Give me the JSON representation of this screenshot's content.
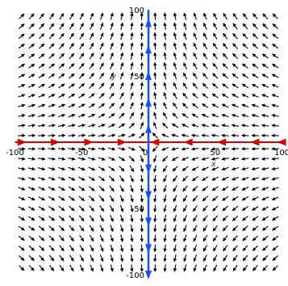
{
  "chart_data": {
    "type": "vector-field",
    "xlabel": "x",
    "ylabel": "y",
    "xlim": [
      -100,
      100
    ],
    "ylim": [
      -100,
      100
    ],
    "x_ticks": [
      -100,
      -50,
      0,
      50,
      100
    ],
    "y_ticks": [
      -100,
      -50,
      50,
      100
    ],
    "x_tick_labels": [
      "-100",
      "-50",
      "0",
      "50",
      "100"
    ],
    "y_tick_labels": [
      "-100",
      "-50",
      "50",
      "100"
    ],
    "grid": false,
    "field": {
      "dx_formula": "-x",
      "dy_formula": "y",
      "x_samples": [
        -95,
        -87.5,
        -80,
        -72.5,
        -65,
        -57.5,
        -50,
        -42.5,
        -35,
        -27.5,
        -20,
        -12.5,
        -5,
        5,
        12.5,
        20,
        27.5,
        35,
        42.5,
        50,
        57.5,
        65,
        72.5,
        80,
        87.5,
        95
      ],
      "y_samples": [
        -95,
        -87.5,
        -80,
        -72.5,
        -65,
        -57.5,
        -50,
        -42.5,
        -35,
        -27.5,
        -20,
        -12.5,
        -5,
        5,
        12.5,
        20,
        27.5,
        35,
        42.5,
        50,
        57.5,
        65,
        72.5,
        80,
        87.5,
        95
      ],
      "color": "#000000"
    },
    "series": [
      {
        "axis": "x",
        "color": "#d40000",
        "direction": "toward-origin",
        "arrow_positions": [
          -95,
          -70,
          -45,
          -20,
          5,
          30,
          55,
          80,
          100
        ]
      },
      {
        "axis": "y",
        "color": "#1a4fff",
        "direction": "away-from-origin",
        "arrow_positions": [
          -100,
          -80,
          -60,
          -40,
          -20,
          10,
          30,
          50,
          70,
          90
        ]
      }
    ]
  }
}
